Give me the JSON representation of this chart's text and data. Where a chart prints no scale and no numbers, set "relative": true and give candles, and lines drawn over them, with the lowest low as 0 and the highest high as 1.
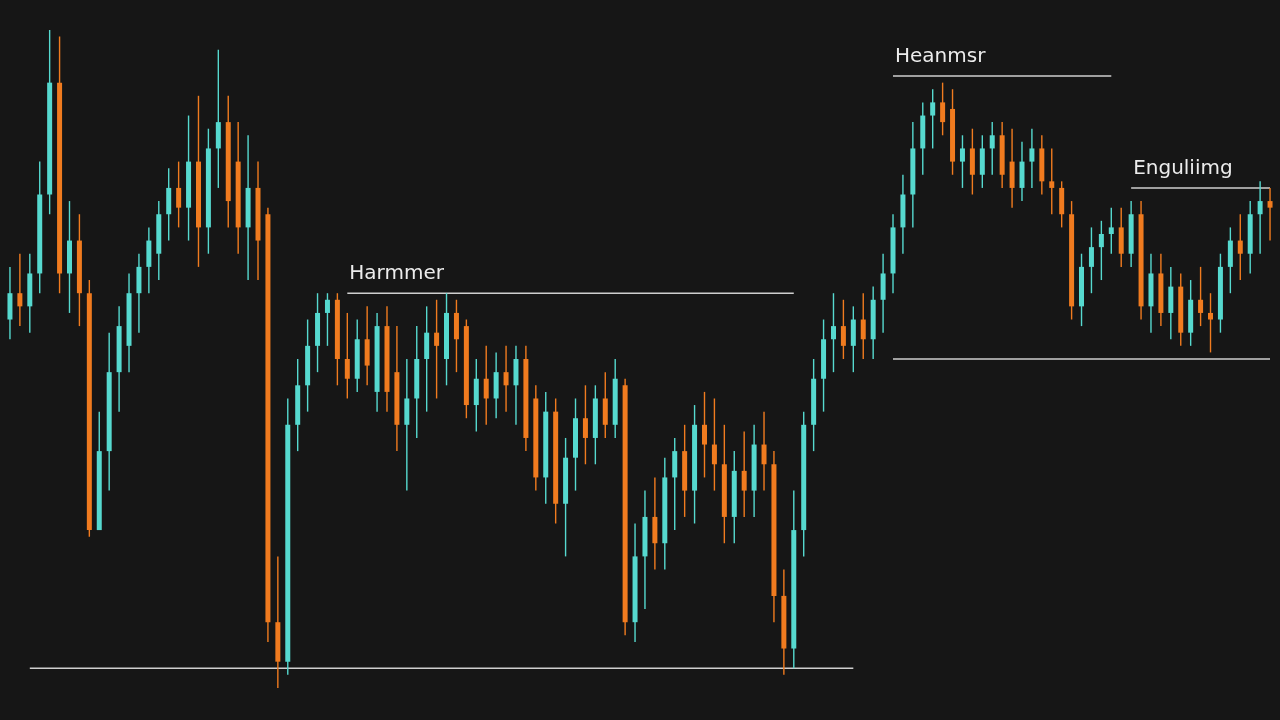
{
  "chart_data": {
    "type": "candlestick",
    "relative": true,
    "categories": [
      null,
      null,
      null,
      null,
      null,
      null,
      null,
      null,
      null,
      null,
      null,
      null,
      null,
      null,
      null,
      null,
      null,
      null,
      null,
      null,
      null,
      null,
      null,
      null,
      null,
      null,
      null,
      null,
      null,
      null,
      null,
      null,
      null,
      null,
      null,
      null,
      null,
      null,
      null,
      null,
      null,
      null,
      null,
      null,
      null,
      null,
      null,
      null,
      null,
      null,
      null,
      null,
      null,
      null,
      null,
      null,
      null,
      null,
      null,
      null,
      null,
      null,
      null,
      null,
      null,
      null,
      null,
      null,
      null,
      null,
      null,
      null,
      null,
      null,
      null,
      null,
      null,
      null,
      null,
      null,
      null,
      null,
      null,
      null,
      null,
      null,
      null,
      null,
      null,
      null,
      null,
      null,
      null,
      null,
      null,
      null,
      null,
      null,
      null,
      null,
      null,
      null,
      null,
      null,
      null,
      null,
      null,
      null,
      null,
      null,
      null,
      null,
      null,
      null,
      null,
      null,
      null,
      null,
      null,
      null,
      null,
      null,
      null,
      null,
      null,
      null,
      null,
      null
    ],
    "ohlc": [
      [
        0.56,
        0.64,
        0.53,
        0.6
      ],
      [
        0.6,
        0.66,
        0.55,
        0.58
      ],
      [
        0.58,
        0.66,
        0.54,
        0.63
      ],
      [
        0.63,
        0.8,
        0.6,
        0.75
      ],
      [
        0.75,
        1.0,
        0.72,
        0.92
      ],
      [
        0.92,
        0.99,
        0.6,
        0.63
      ],
      [
        0.63,
        0.74,
        0.57,
        0.68
      ],
      [
        0.68,
        0.72,
        0.55,
        0.6
      ],
      [
        0.6,
        0.62,
        0.23,
        0.24
      ],
      [
        0.24,
        0.42,
        0.24,
        0.36
      ],
      [
        0.36,
        0.54,
        0.3,
        0.48
      ],
      [
        0.48,
        0.58,
        0.42,
        0.55
      ],
      [
        0.52,
        0.63,
        0.48,
        0.6
      ],
      [
        0.6,
        0.66,
        0.54,
        0.64
      ],
      [
        0.64,
        0.7,
        0.6,
        0.68
      ],
      [
        0.66,
        0.74,
        0.62,
        0.72
      ],
      [
        0.72,
        0.79,
        0.68,
        0.76
      ],
      [
        0.76,
        0.8,
        0.7,
        0.73
      ],
      [
        0.73,
        0.87,
        0.68,
        0.8
      ],
      [
        0.8,
        0.9,
        0.64,
        0.7
      ],
      [
        0.7,
        0.85,
        0.66,
        0.82
      ],
      [
        0.82,
        0.97,
        0.76,
        0.86
      ],
      [
        0.86,
        0.9,
        0.7,
        0.74
      ],
      [
        0.8,
        0.86,
        0.66,
        0.7
      ],
      [
        0.7,
        0.84,
        0.62,
        0.76
      ],
      [
        0.76,
        0.8,
        0.62,
        0.68
      ],
      [
        0.72,
        0.73,
        0.07,
        0.1
      ],
      [
        0.1,
        0.2,
        0,
        0.04
      ],
      [
        0.04,
        0.44,
        0.02,
        0.4
      ],
      [
        0.4,
        0.5,
        0.36,
        0.46
      ],
      [
        0.46,
        0.56,
        0.42,
        0.52
      ],
      [
        0.52,
        0.6,
        0.48,
        0.57
      ],
      [
        0.57,
        0.6,
        0.52,
        0.59
      ],
      [
        0.59,
        0.6,
        0.46,
        0.5
      ],
      [
        0.5,
        0.57,
        0.44,
        0.47
      ],
      [
        0.47,
        0.56,
        0.45,
        0.53
      ],
      [
        0.53,
        0.58,
        0.46,
        0.49
      ],
      [
        0.45,
        0.57,
        0.42,
        0.55
      ],
      [
        0.55,
        0.58,
        0.42,
        0.45
      ],
      [
        0.48,
        0.55,
        0.36,
        0.4
      ],
      [
        0.4,
        0.5,
        0.3,
        0.44
      ],
      [
        0.44,
        0.55,
        0.38,
        0.5
      ],
      [
        0.5,
        0.58,
        0.42,
        0.54
      ],
      [
        0.54,
        0.59,
        0.44,
        0.52
      ],
      [
        0.5,
        0.6,
        0.46,
        0.57
      ],
      [
        0.57,
        0.59,
        0.48,
        0.53
      ],
      [
        0.55,
        0.56,
        0.41,
        0.43
      ],
      [
        0.43,
        0.5,
        0.39,
        0.47
      ],
      [
        0.47,
        0.52,
        0.4,
        0.44
      ],
      [
        0.44,
        0.51,
        0.41,
        0.48
      ],
      [
        0.48,
        0.52,
        0.42,
        0.46
      ],
      [
        0.46,
        0.52,
        0.4,
        0.5
      ],
      [
        0.5,
        0.52,
        0.36,
        0.38
      ],
      [
        0.44,
        0.46,
        0.3,
        0.32
      ],
      [
        0.32,
        0.45,
        0.28,
        0.42
      ],
      [
        0.42,
        0.44,
        0.25,
        0.28
      ],
      [
        0.28,
        0.38,
        0.2,
        0.35
      ],
      [
        0.35,
        0.44,
        0.3,
        0.41
      ],
      [
        0.41,
        0.46,
        0.34,
        0.38
      ],
      [
        0.38,
        0.46,
        0.34,
        0.44
      ],
      [
        0.44,
        0.48,
        0.38,
        0.4
      ],
      [
        0.4,
        0.5,
        0.38,
        0.47
      ],
      [
        0.46,
        0.47,
        0.08,
        0.1
      ],
      [
        0.1,
        0.25,
        0.07,
        0.2
      ],
      [
        0.2,
        0.3,
        0.12,
        0.26
      ],
      [
        0.26,
        0.32,
        0.18,
        0.22
      ],
      [
        0.22,
        0.35,
        0.18,
        0.32
      ],
      [
        0.32,
        0.38,
        0.24,
        0.36
      ],
      [
        0.36,
        0.4,
        0.26,
        0.3
      ],
      [
        0.3,
        0.43,
        0.25,
        0.4
      ],
      [
        0.4,
        0.45,
        0.32,
        0.37
      ],
      [
        0.37,
        0.44,
        0.3,
        0.34
      ],
      [
        0.34,
        0.4,
        0.22,
        0.26
      ],
      [
        0.26,
        0.36,
        0.22,
        0.33
      ],
      [
        0.33,
        0.39,
        0.26,
        0.3
      ],
      [
        0.3,
        0.4,
        0.26,
        0.37
      ],
      [
        0.37,
        0.42,
        0.3,
        0.34
      ],
      [
        0.34,
        0.36,
        0.1,
        0.14
      ],
      [
        0.14,
        0.18,
        0.02,
        0.06
      ],
      [
        0.06,
        0.3,
        0.03,
        0.24
      ],
      [
        0.24,
        0.42,
        0.2,
        0.4
      ],
      [
        0.4,
        0.5,
        0.36,
        0.47
      ],
      [
        0.47,
        0.56,
        0.42,
        0.53
      ],
      [
        0.53,
        0.6,
        0.48,
        0.55
      ],
      [
        0.55,
        0.59,
        0.5,
        0.52
      ],
      [
        0.52,
        0.58,
        0.48,
        0.56
      ],
      [
        0.56,
        0.6,
        0.5,
        0.53
      ],
      [
        0.53,
        0.61,
        0.5,
        0.59
      ],
      [
        0.59,
        0.66,
        0.54,
        0.63
      ],
      [
        0.63,
        0.72,
        0.6,
        0.7
      ],
      [
        0.7,
        0.78,
        0.66,
        0.75
      ],
      [
        0.75,
        0.86,
        0.7,
        0.82
      ],
      [
        0.82,
        0.89,
        0.78,
        0.87
      ],
      [
        0.87,
        0.91,
        0.82,
        0.89
      ],
      [
        0.89,
        0.92,
        0.84,
        0.86
      ],
      [
        0.88,
        0.91,
        0.78,
        0.8
      ],
      [
        0.8,
        0.84,
        0.76,
        0.82
      ],
      [
        0.82,
        0.85,
        0.75,
        0.78
      ],
      [
        0.78,
        0.84,
        0.76,
        0.82
      ],
      [
        0.82,
        0.86,
        0.78,
        0.84
      ],
      [
        0.84,
        0.86,
        0.76,
        0.78
      ],
      [
        0.8,
        0.85,
        0.73,
        0.76
      ],
      [
        0.76,
        0.83,
        0.74,
        0.8
      ],
      [
        0.8,
        0.85,
        0.76,
        0.82
      ],
      [
        0.82,
        0.84,
        0.75,
        0.77
      ],
      [
        0.77,
        0.82,
        0.72,
        0.76
      ],
      [
        0.76,
        0.77,
        0.7,
        0.72
      ],
      [
        0.72,
        0.74,
        0.56,
        0.58
      ],
      [
        0.58,
        0.66,
        0.55,
        0.64
      ],
      [
        0.64,
        0.7,
        0.6,
        0.67
      ],
      [
        0.67,
        0.71,
        0.62,
        0.69
      ],
      [
        0.69,
        0.73,
        0.66,
        0.7
      ],
      [
        0.7,
        0.73,
        0.64,
        0.66
      ],
      [
        0.66,
        0.74,
        0.64,
        0.72
      ],
      [
        0.72,
        0.74,
        0.56,
        0.58
      ],
      [
        0.58,
        0.66,
        0.54,
        0.63
      ],
      [
        0.63,
        0.66,
        0.55,
        0.57
      ],
      [
        0.57,
        0.64,
        0.53,
        0.61
      ],
      [
        0.61,
        0.63,
        0.52,
        0.54
      ],
      [
        0.54,
        0.62,
        0.52,
        0.59
      ],
      [
        0.59,
        0.64,
        0.55,
        0.57
      ],
      [
        0.57,
        0.6,
        0.51,
        0.56
      ],
      [
        0.56,
        0.66,
        0.54,
        0.64
      ],
      [
        0.64,
        0.7,
        0.6,
        0.68
      ],
      [
        0.68,
        0.72,
        0.62,
        0.66
      ],
      [
        0.66,
        0.74,
        0.63,
        0.72
      ],
      [
        0.72,
        0.77,
        0.66,
        0.74
      ],
      [
        0.74,
        0.76,
        0.68,
        0.73
      ]
    ],
    "colors": [
      "#56d9cf",
      "#f07b1f",
      "#56d9cf",
      "#56d9cf",
      "#56d9cf",
      "#f07b1f",
      "#56d9cf",
      "#f07b1f",
      "#f07b1f",
      "#56d9cf",
      "#56d9cf",
      "#56d9cf",
      "#56d9cf",
      "#56d9cf",
      "#56d9cf",
      "#56d9cf",
      "#56d9cf",
      "#f07b1f",
      "#56d9cf",
      "#f07b1f",
      "#56d9cf",
      "#56d9cf",
      "#f07b1f",
      "#f07b1f",
      "#56d9cf",
      "#f07b1f",
      "#f07b1f",
      "#f07b1f",
      "#56d9cf",
      "#56d9cf",
      "#56d9cf",
      "#56d9cf",
      "#56d9cf",
      "#f07b1f",
      "#f07b1f",
      "#56d9cf",
      "#f07b1f",
      "#56d9cf",
      "#f07b1f",
      "#f07b1f",
      "#56d9cf",
      "#56d9cf",
      "#56d9cf",
      "#f07b1f",
      "#56d9cf",
      "#f07b1f",
      "#f07b1f",
      "#56d9cf",
      "#f07b1f",
      "#56d9cf",
      "#f07b1f",
      "#56d9cf",
      "#f07b1f",
      "#f07b1f",
      "#56d9cf",
      "#f07b1f",
      "#56d9cf",
      "#56d9cf",
      "#f07b1f",
      "#56d9cf",
      "#f07b1f",
      "#56d9cf",
      "#f07b1f",
      "#56d9cf",
      "#56d9cf",
      "#f07b1f",
      "#56d9cf",
      "#56d9cf",
      "#f07b1f",
      "#56d9cf",
      "#f07b1f",
      "#f07b1f",
      "#f07b1f",
      "#56d9cf",
      "#f07b1f",
      "#56d9cf",
      "#f07b1f",
      "#f07b1f",
      "#f07b1f",
      "#56d9cf",
      "#56d9cf",
      "#56d9cf",
      "#56d9cf",
      "#56d9cf",
      "#f07b1f",
      "#56d9cf",
      "#f07b1f",
      "#56d9cf",
      "#56d9cf",
      "#56d9cf",
      "#56d9cf",
      "#56d9cf",
      "#56d9cf",
      "#56d9cf",
      "#f07b1f",
      "#f07b1f",
      "#56d9cf",
      "#f07b1f",
      "#56d9cf",
      "#56d9cf",
      "#f07b1f",
      "#f07b1f",
      "#56d9cf",
      "#56d9cf",
      "#f07b1f",
      "#f07b1f",
      "#f07b1f",
      "#f07b1f",
      "#56d9cf",
      "#56d9cf",
      "#56d9cf",
      "#56d9cf",
      "#f07b1f",
      "#56d9cf",
      "#f07b1f",
      "#56d9cf",
      "#f07b1f",
      "#56d9cf",
      "#f07b1f",
      "#56d9cf",
      "#f07b1f",
      "#f07b1f",
      "#56d9cf",
      "#56d9cf",
      "#f07b1f",
      "#56d9cf",
      "#56d9cf",
      "#f07b1f"
    ],
    "series": [
      {
        "type": "line",
        "color": "#cfcfcf",
        "values": [
          null,
          null,
          0.03,
          0.03,
          0.03,
          0.03,
          0.03,
          0.03,
          0.03,
          0.03,
          0.03,
          0.03,
          0.03,
          0.03,
          0.03,
          0.03,
          0.03,
          0.03,
          0.03,
          0.03,
          0.03,
          0.03,
          0.03,
          0.03,
          0.03,
          0.03,
          0.03,
          0.03,
          0.03,
          0.03,
          0.03,
          0.03,
          0.03,
          0.03,
          0.03,
          0.03,
          0.03,
          0.03,
          0.03,
          0.03,
          0.03,
          0.03,
          0.03,
          0.03,
          0.03,
          0.03,
          0.03,
          0.03,
          0.03,
          0.03,
          0.03,
          0.03,
          0.03,
          0.03,
          0.03,
          0.03,
          0.03,
          0.03,
          0.03,
          0.03,
          0.03,
          0.03,
          0.03,
          0.03,
          0.03,
          0.03,
          0.03,
          0.03,
          0.03,
          0.03,
          0.03,
          0.03,
          0.03,
          0.03,
          0.03,
          0.03,
          0.03,
          0.03,
          0.03,
          0.03,
          0.03,
          0.03,
          0.03,
          0.03,
          0.03,
          0.03,
          null,
          null,
          null,
          null,
          null,
          null,
          null,
          null,
          null,
          null,
          null,
          null,
          null,
          null,
          null,
          null,
          null,
          null,
          null,
          null,
          null,
          null,
          null,
          null,
          null,
          null,
          null,
          null,
          null,
          null,
          null,
          null,
          null,
          null,
          null,
          null,
          null,
          null,
          null,
          null,
          null,
          null
        ]
      },
      {
        "type": "line",
        "name": "Harmmer",
        "color": "#cfcfcf",
        "values": [
          null,
          null,
          null,
          null,
          null,
          null,
          null,
          null,
          null,
          null,
          null,
          null,
          null,
          null,
          null,
          null,
          null,
          null,
          null,
          null,
          null,
          null,
          null,
          null,
          null,
          null,
          null,
          null,
          null,
          null,
          null,
          null,
          null,
          null,
          0.6,
          0.6,
          0.6,
          0.6,
          0.6,
          0.6,
          0.6,
          0.6,
          0.6,
          0.6,
          0.6,
          0.6,
          0.6,
          0.6,
          0.6,
          0.6,
          0.6,
          0.6,
          0.6,
          0.6,
          0.6,
          0.6,
          0.6,
          0.6,
          0.6,
          0.6,
          0.6,
          0.6,
          0.6,
          0.6,
          0.6,
          0.6,
          0.6,
          0.6,
          0.6,
          0.6,
          0.6,
          0.6,
          0.6,
          0.6,
          0.6,
          0.6,
          0.6,
          0.6,
          0.6,
          0.6,
          null,
          null,
          null,
          null,
          null,
          null,
          null,
          null,
          null,
          null,
          null,
          null,
          null,
          null,
          null,
          null,
          null,
          null,
          null,
          null,
          null,
          null,
          null,
          null,
          null,
          null,
          null,
          null,
          null,
          null,
          null,
          null,
          null,
          null,
          null,
          null,
          null,
          null,
          null,
          null,
          null,
          null,
          null,
          null,
          null,
          null,
          null,
          null
        ]
      },
      {
        "type": "line",
        "name": "Heanmsr",
        "color": "#cfcfcf",
        "values": [
          null,
          null,
          null,
          null,
          null,
          null,
          null,
          null,
          null,
          null,
          null,
          null,
          null,
          null,
          null,
          null,
          null,
          null,
          null,
          null,
          null,
          null,
          null,
          null,
          null,
          null,
          null,
          null,
          null,
          null,
          null,
          null,
          null,
          null,
          null,
          null,
          null,
          null,
          null,
          null,
          null,
          null,
          null,
          null,
          null,
          null,
          null,
          null,
          null,
          null,
          null,
          null,
          null,
          null,
          null,
          null,
          null,
          null,
          null,
          null,
          null,
          null,
          null,
          null,
          null,
          null,
          null,
          null,
          null,
          null,
          null,
          null,
          null,
          null,
          null,
          null,
          null,
          null,
          null,
          null,
          null,
          null,
          null,
          null,
          null,
          null,
          null,
          null,
          null,
          0.93,
          0.93,
          0.93,
          0.93,
          0.93,
          0.93,
          0.93,
          0.93,
          0.93,
          0.93,
          0.93,
          0.93,
          0.93,
          0.93,
          0.93,
          0.93,
          0.93,
          0.93,
          0.93,
          0.93,
          0.93,
          0.93,
          0.93,
          null,
          null,
          null,
          null,
          null,
          null,
          null,
          null,
          null,
          null,
          null,
          null,
          null,
          null,
          null,
          null
        ]
      },
      {
        "type": "line",
        "color": "#cfcfcf",
        "values": [
          null,
          null,
          null,
          null,
          null,
          null,
          null,
          null,
          null,
          null,
          null,
          null,
          null,
          null,
          null,
          null,
          null,
          null,
          null,
          null,
          null,
          null,
          null,
          null,
          null,
          null,
          null,
          null,
          null,
          null,
          null,
          null,
          null,
          null,
          null,
          null,
          null,
          null,
          null,
          null,
          null,
          null,
          null,
          null,
          null,
          null,
          null,
          null,
          null,
          null,
          null,
          null,
          null,
          null,
          null,
          null,
          null,
          null,
          null,
          null,
          null,
          null,
          null,
          null,
          null,
          null,
          null,
          null,
          null,
          null,
          null,
          null,
          null,
          null,
          null,
          null,
          null,
          null,
          null,
          null,
          null,
          null,
          null,
          null,
          null,
          null,
          null,
          null,
          null,
          0.5,
          0.5,
          0.5,
          0.5,
          0.5,
          0.5,
          0.5,
          0.5,
          0.5,
          0.5,
          0.5,
          0.5,
          0.5,
          0.5,
          0.5,
          0.5,
          0.5,
          0.5,
          0.5,
          0.5,
          0.5,
          0.5,
          0.5,
          0.5,
          0.5,
          0.5,
          0.5,
          0.5,
          0.5,
          0.5,
          0.5,
          0.5,
          0.5,
          0.5,
          0.5,
          0.5,
          0.5,
          0.5,
          0.5
        ]
      },
      {
        "type": "line",
        "name": "Enguliimg",
        "color": "#cfcfcf",
        "values": [
          null,
          null,
          null,
          null,
          null,
          null,
          null,
          null,
          null,
          null,
          null,
          null,
          null,
          null,
          null,
          null,
          null,
          null,
          null,
          null,
          null,
          null,
          null,
          null,
          null,
          null,
          null,
          null,
          null,
          null,
          null,
          null,
          null,
          null,
          null,
          null,
          null,
          null,
          null,
          null,
          null,
          null,
          null,
          null,
          null,
          null,
          null,
          null,
          null,
          null,
          null,
          null,
          null,
          null,
          null,
          null,
          null,
          null,
          null,
          null,
          null,
          null,
          null,
          null,
          null,
          null,
          null,
          null,
          null,
          null,
          null,
          null,
          null,
          null,
          null,
          null,
          null,
          null,
          null,
          null,
          null,
          null,
          null,
          null,
          null,
          null,
          null,
          null,
          null,
          null,
          null,
          null,
          null,
          null,
          null,
          null,
          null,
          null,
          null,
          null,
          null,
          null,
          null,
          null,
          null,
          null,
          null,
          null,
          null,
          null,
          null,
          null,
          null,
          0.76,
          0.76,
          0.76,
          0.76,
          0.76,
          0.76,
          0.76,
          0.76,
          0.76,
          0.76,
          0.76,
          0.76,
          0.76,
          0.76,
          0.76
        ]
      }
    ]
  }
}
